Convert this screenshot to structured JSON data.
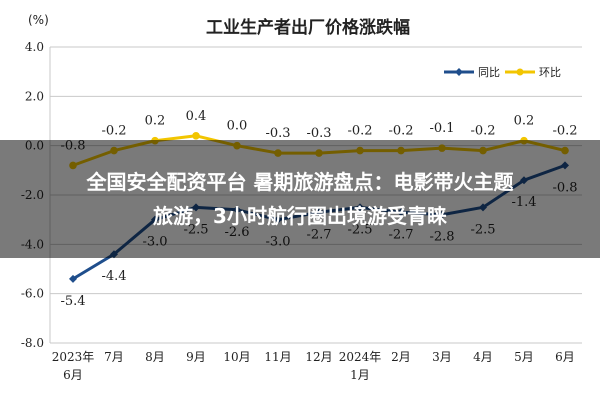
{
  "colors": {
    "yoy": "#1f4e8c",
    "mom": "#f2c500",
    "grid": "#c9c9c9",
    "text": "#222222"
  },
  "overlay": {
    "line1": "全国安全配资平台 暑期旅游盘点：电影带火主题",
    "line2": "旅游，3小时航行圈出境游受青睐"
  },
  "chart_data": {
    "type": "line",
    "title": "工业生产者出厂价格涨跌幅",
    "ylabel": "(%)",
    "xlabel": "",
    "ylim": [
      -8.0,
      4.0
    ],
    "yticks": [
      "4.0",
      "2.0",
      "0.0",
      "-2.0",
      "-4.0",
      "-6.0",
      "-8.0"
    ],
    "ytick_values": [
      4,
      2,
      0,
      -2,
      -4,
      -6,
      -8
    ],
    "categories": [
      "2023年6月",
      "7月",
      "8月",
      "9月",
      "10月",
      "11月",
      "12月",
      "2024年1月",
      "2月",
      "3月",
      "4月",
      "5月",
      "6月"
    ],
    "category_lines": [
      [
        "2023年",
        "6月"
      ],
      [
        "7月"
      ],
      [
        "8月"
      ],
      [
        "9月"
      ],
      [
        "10月"
      ],
      [
        "11月"
      ],
      [
        "12月"
      ],
      [
        "2024年",
        "1月"
      ],
      [
        "2月"
      ],
      [
        "3月"
      ],
      [
        "4月"
      ],
      [
        "5月"
      ],
      [
        "6月"
      ]
    ],
    "legend_position": "top-right",
    "grid": "horizontal",
    "series": [
      {
        "name": "同比",
        "values": [
          -5.4,
          -4.4,
          -3.0,
          -2.5,
          -2.6,
          -3.0,
          -2.7,
          -2.5,
          -2.7,
          -2.8,
          -2.5,
          -1.4,
          -0.8
        ],
        "labels": [
          "-5.4",
          "-4.4",
          "-3.0",
          "-2.5",
          "-2.6",
          "-3.0",
          "-2.7",
          "-2.5",
          "-2.7",
          "-2.8",
          "-2.5",
          "-1.4",
          "-0.8"
        ]
      },
      {
        "name": "环比",
        "values": [
          -0.8,
          -0.2,
          0.2,
          0.4,
          0.0,
          -0.3,
          -0.3,
          -0.2,
          -0.2,
          -0.1,
          -0.2,
          0.2,
          -0.2
        ],
        "labels": [
          "-0.8",
          "-0.2",
          "0.2",
          "0.4",
          "0.0",
          "-0.3",
          "-0.3",
          "-0.2",
          "-0.2",
          "-0.1",
          "-0.2",
          "0.2",
          "-0.2"
        ]
      }
    ]
  }
}
